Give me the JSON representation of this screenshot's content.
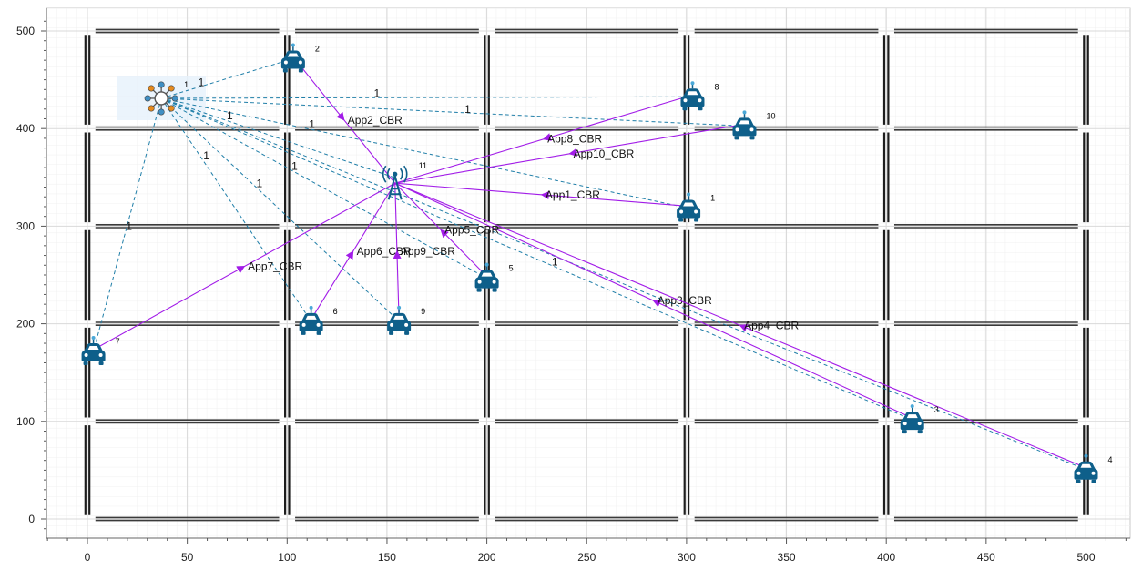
{
  "axes": {
    "x_ticks": [
      "0",
      "50",
      "100",
      "150",
      "200",
      "250",
      "300",
      "350",
      "400",
      "450",
      "500"
    ],
    "y_ticks": [
      "500",
      "400",
      "300",
      "200",
      "100",
      "0"
    ],
    "x_range": [
      -20,
      522
    ],
    "y_range": [
      -20,
      510
    ]
  },
  "colors": {
    "app_link": "#a21ce8",
    "wireless_link": "#1f7ea8",
    "vehicle": "#0e5f8a",
    "road": "#2a2a2a",
    "grid": "#dcdcdc"
  },
  "sdn_controller": {
    "id": "1",
    "icon": "network-hub-icon",
    "x": 37,
    "y": 431
  },
  "base_station": {
    "id": "11",
    "icon": "cell-tower-icon",
    "x": 154,
    "y": 344
  },
  "vehicles": [
    {
      "id": "1",
      "x": 301,
      "y": 313
    },
    {
      "id": "2",
      "x": 103,
      "y": 466
    },
    {
      "id": "3",
      "x": 413,
      "y": 96
    },
    {
      "id": "4",
      "x": 500,
      "y": 45
    },
    {
      "id": "5",
      "x": 200,
      "y": 241
    },
    {
      "id": "6",
      "x": 112,
      "y": 197
    },
    {
      "id": "7",
      "x": 3,
      "y": 166
    },
    {
      "id": "8",
      "x": 303,
      "y": 427
    },
    {
      "id": "9",
      "x": 156,
      "y": 197
    },
    {
      "id": "10",
      "x": 329,
      "y": 397
    }
  ],
  "app_links": [
    {
      "label": "App1_CBR",
      "from": "1"
    },
    {
      "label": "App2_CBR",
      "from": "2"
    },
    {
      "label": "App3_CBR",
      "from": "3"
    },
    {
      "label": "App4_CBR",
      "from": "4"
    },
    {
      "label": "App5_CBR",
      "from": "5"
    },
    {
      "label": "App6_CBR",
      "from": "6"
    },
    {
      "label": "App7_CBR",
      "from": "7"
    },
    {
      "label": "App8_CBR",
      "from": "8"
    },
    {
      "label": "App9_CBR",
      "from": "9"
    },
    {
      "label": "App10_CBR",
      "from": "10"
    }
  ],
  "wireless_links": [
    "2",
    "8",
    "10",
    "1",
    "5",
    "3",
    "4",
    "6",
    "9",
    "7",
    "11"
  ],
  "link_weight_labels": [
    "1",
    "1",
    "1",
    "1",
    "1",
    "1",
    "1",
    "1",
    "1",
    "1"
  ]
}
